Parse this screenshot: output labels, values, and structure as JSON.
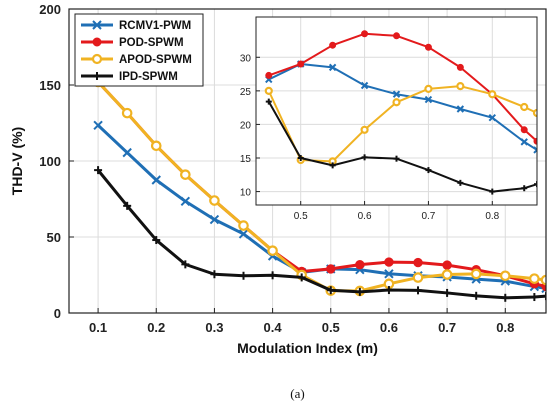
{
  "chart_data": {
    "type": "line",
    "xlabel": "Modulation Index (m)",
    "ylabel": "THD-V (%)",
    "xlim": [
      0.05,
      0.87
    ],
    "ylim": [
      0,
      200
    ],
    "xticks": [
      "0.1",
      "0.2",
      "0.3",
      "0.4",
      "0.5",
      "0.6",
      "0.7",
      "0.8"
    ],
    "yticks": [
      "0",
      "50",
      "100",
      "150",
      "200"
    ],
    "grid": true,
    "legend_position": "top-left",
    "caption": "(a)",
    "x": [
      0.1,
      0.15,
      0.2,
      0.25,
      0.3,
      0.35,
      0.4,
      0.45,
      0.5,
      0.55,
      0.6,
      0.65,
      0.7,
      0.75,
      0.8,
      0.85,
      0.87
    ],
    "series": [
      {
        "name": "RCMV1-PWM",
        "color": "#1f6fb5",
        "marker": "x",
        "values": [
          123.5,
          105.5,
          87.5,
          73.5,
          61.5,
          52.0,
          37.5,
          26.7,
          29.0,
          28.5,
          25.8,
          24.5,
          23.7,
          22.3,
          21.0,
          17.4,
          16.2
        ]
      },
      {
        "name": "POD-SPWM",
        "color": "#e31a1c",
        "marker": "circle",
        "values": [
          152.0,
          131.5,
          110.0,
          91.0,
          74.0,
          57.5,
          41.0,
          27.3,
          29.0,
          31.8,
          33.5,
          33.2,
          31.5,
          28.5,
          24.5,
          19.2,
          17.5
        ]
      },
      {
        "name": "APOD-SPWM",
        "color": "#f0b323",
        "marker": "circle-open",
        "values": [
          152.0,
          131.5,
          110.0,
          91.0,
          74.0,
          57.5,
          41.0,
          25.0,
          14.7,
          14.5,
          19.2,
          23.3,
          25.3,
          25.7,
          24.5,
          22.6,
          21.7
        ]
      },
      {
        "name": "IPD-SPWM",
        "color": "#111111",
        "marker": "plus",
        "values": [
          94.0,
          70.5,
          48.0,
          32.0,
          25.5,
          24.5,
          24.8,
          23.4,
          15.0,
          13.9,
          15.1,
          14.9,
          13.2,
          11.3,
          10.0,
          10.5,
          11.1
        ]
      }
    ],
    "inset": {
      "xlim": [
        0.43,
        0.87
      ],
      "ylim": [
        8,
        36
      ],
      "xticks": [
        "0.5",
        "0.6",
        "0.7",
        "0.8"
      ],
      "yticks": [
        "10",
        "15",
        "20",
        "25",
        "30"
      ],
      "grid": true
    }
  }
}
